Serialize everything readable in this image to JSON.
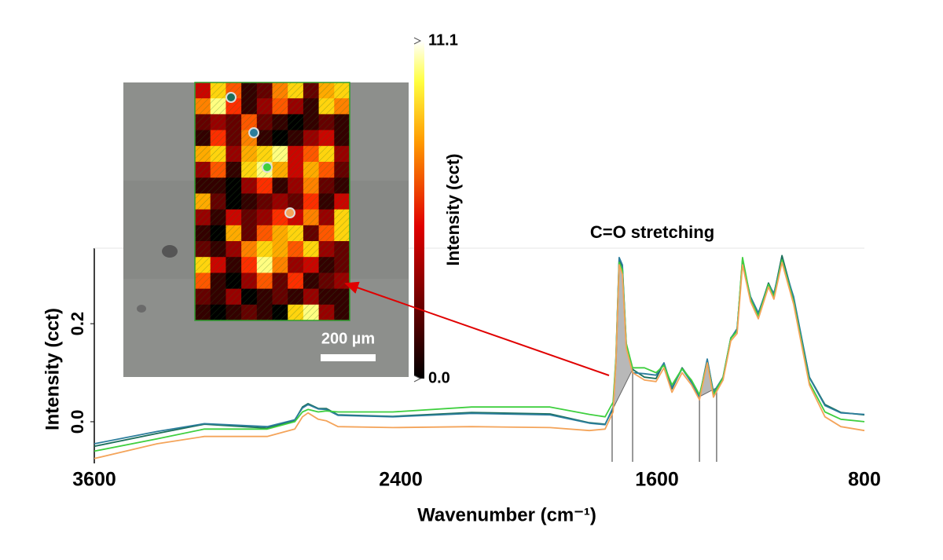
{
  "chart_data": [
    {
      "type": "line",
      "annotation": "C=O stretching",
      "x_label": "Wavenumber (cm⁻¹)",
      "y_label": "Intensity (cct)",
      "x": [
        3600,
        3354,
        3169,
        2923,
        2815,
        2785,
        2763,
        2723,
        2692,
        2646,
        2431,
        2179,
        1934,
        1811,
        1762,
        1737,
        1728,
        1718,
        1708,
        1696,
        1676,
        1639,
        1603,
        1573,
        1542,
        1503,
        1467,
        1436,
        1406,
        1382,
        1345,
        1315,
        1291,
        1270,
        1239,
        1209,
        1170,
        1149,
        1118,
        1073,
        1012,
        952,
        891,
        800
      ],
      "series": [
        {
          "color": "#1b6f5a",
          "values": [
            -0.05,
            -0.024,
            -0.005,
            -0.013,
            0.003,
            0.03,
            0.037,
            0.027,
            0.027,
            0.014,
            0.011,
            0.019,
            0.016,
            -0.002,
            -0.005,
            0.027,
            0.123,
            0.331,
            0.315,
            0.155,
            0.107,
            0.091,
            0.088,
            0.12,
            0.067,
            0.11,
            0.083,
            0.051,
            0.126,
            0.059,
            0.091,
            0.171,
            0.187,
            0.331,
            0.251,
            0.219,
            0.283,
            0.259,
            0.339,
            0.251,
            0.091,
            0.035,
            0.019,
            0.014
          ]
        },
        {
          "color": "#2c7d9c",
          "values": [
            -0.045,
            -0.02,
            -0.004,
            -0.01,
            0.004,
            0.028,
            0.035,
            0.026,
            0.025,
            0.013,
            0.01,
            0.017,
            0.014,
            -0.003,
            -0.006,
            0.03,
            0.13,
            0.335,
            0.32,
            0.16,
            0.1,
            0.098,
            0.095,
            0.12,
            0.07,
            0.108,
            0.08,
            0.05,
            0.128,
            0.06,
            0.09,
            0.17,
            0.19,
            0.325,
            0.255,
            0.222,
            0.28,
            0.262,
            0.33,
            0.255,
            0.09,
            0.033,
            0.018,
            0.015
          ]
        },
        {
          "color": "#3fcf3f",
          "values": [
            -0.06,
            -0.035,
            -0.015,
            -0.015,
            0.0,
            0.02,
            0.025,
            0.02,
            0.022,
            0.02,
            0.02,
            0.03,
            0.03,
            0.015,
            0.01,
            0.04,
            0.13,
            0.325,
            0.31,
            0.16,
            0.11,
            0.11,
            0.1,
            0.115,
            0.075,
            0.108,
            0.085,
            0.055,
            0.12,
            0.055,
            0.09,
            0.17,
            0.185,
            0.335,
            0.25,
            0.215,
            0.28,
            0.255,
            0.33,
            0.245,
            0.08,
            0.02,
            0.005,
            0.0
          ]
        },
        {
          "color": "#f4a45a",
          "values": [
            -0.075,
            -0.045,
            -0.03,
            -0.03,
            -0.015,
            0.01,
            0.018,
            0.005,
            0.002,
            -0.01,
            -0.012,
            -0.01,
            -0.012,
            -0.018,
            -0.015,
            0.02,
            0.12,
            0.32,
            0.3,
            0.15,
            0.1,
            0.085,
            0.082,
            0.11,
            0.06,
            0.1,
            0.075,
            0.045,
            0.12,
            0.05,
            0.085,
            0.165,
            0.18,
            0.32,
            0.245,
            0.21,
            0.275,
            0.25,
            0.325,
            0.24,
            0.075,
            0.01,
            -0.01,
            -0.018
          ]
        }
      ],
      "integration_bounds": [
        1740,
        1676,
        1436,
        1370
      ],
      "xlim": [
        3600,
        800
      ],
      "xticks": [
        3600,
        2400,
        1600,
        800
      ],
      "ylim": [
        -0.085,
        0.354
      ],
      "yticks": [
        {
          "value": 0,
          "label": "0.0"
        },
        0.2
      ]
    },
    {
      "type": "heatmap",
      "colorbar_label": "Intensity (cct)",
      "scale_bar_label": "200 µm",
      "clim": [
        0,
        11.1
      ],
      "cticks": [
        11.1,
        {
          "value": 0,
          "label": "0.0"
        }
      ],
      "values": [
        [
          4,
          9,
          6,
          1,
          2,
          7,
          9,
          2,
          8,
          9
        ],
        [
          7,
          10,
          5,
          1,
          3,
          6,
          3,
          1,
          9,
          7
        ],
        [
          2,
          3,
          2,
          6,
          2,
          1,
          0,
          1,
          2,
          1
        ],
        [
          1,
          5,
          2,
          7,
          1,
          0,
          1,
          3,
          4,
          1
        ],
        [
          8,
          9,
          3,
          8,
          9,
          10,
          4,
          6,
          9,
          3
        ],
        [
          3,
          6,
          1,
          9,
          10,
          8,
          4,
          8,
          6,
          2
        ],
        [
          1,
          1,
          0,
          3,
          5,
          1,
          3,
          7,
          2,
          1
        ],
        [
          8,
          2,
          0,
          1,
          2,
          3,
          2,
          5,
          1,
          4
        ],
        [
          3,
          1,
          4,
          2,
          3,
          5,
          4,
          7,
          3,
          9
        ],
        [
          1,
          0,
          8,
          2,
          6,
          8,
          9,
          2,
          6,
          9
        ],
        [
          2,
          1,
          3,
          7,
          9,
          8,
          6,
          9,
          3,
          2
        ],
        [
          9,
          4,
          1,
          5,
          10,
          7,
          3,
          4,
          1,
          2
        ],
        [
          6,
          1,
          0,
          3,
          6,
          2,
          5,
          1,
          2,
          3
        ],
        [
          2,
          1,
          3,
          0,
          1,
          2,
          1,
          3,
          1,
          1
        ],
        [
          1,
          0,
          1,
          2,
          1,
          0,
          9,
          10,
          3,
          1
        ]
      ]
    }
  ]
}
